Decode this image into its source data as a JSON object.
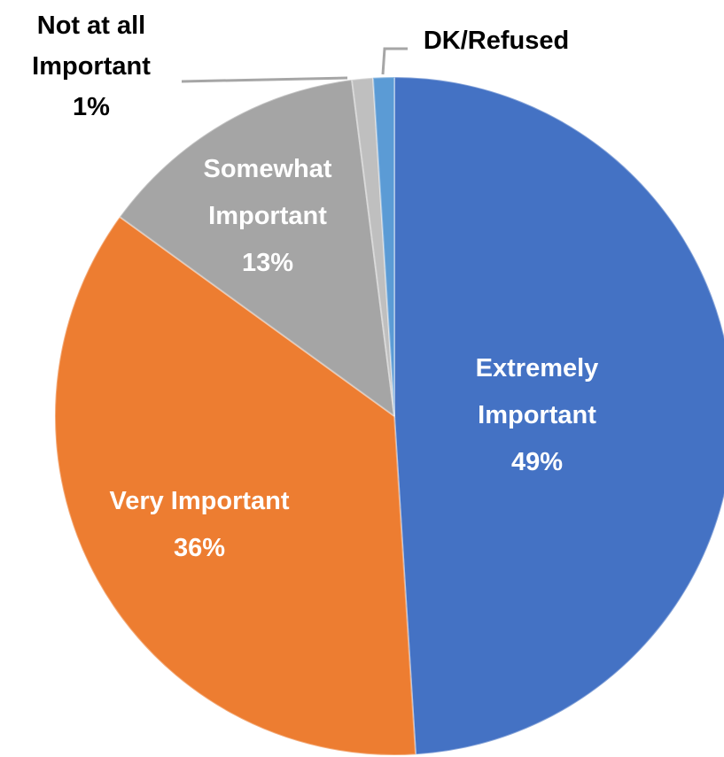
{
  "chart_data": {
    "type": "pie",
    "title": "",
    "slices": [
      {
        "label_lines": [
          "Extremely",
          "Important"
        ],
        "pct_label": "49%",
        "value": 49,
        "color": "#4472C4",
        "label_color": "#FFFFFF"
      },
      {
        "label_lines": [
          "Very Important"
        ],
        "pct_label": "36%",
        "value": 36,
        "color": "#ED7D31",
        "label_color": "#FFFFFF"
      },
      {
        "label_lines": [
          "Somewhat",
          "Important"
        ],
        "pct_label": "13%",
        "value": 13,
        "color": "#A5A5A5",
        "label_color": "#FFFFFF"
      },
      {
        "label_lines": [
          "Not at all",
          "Important"
        ],
        "pct_label": "1%",
        "value": 1,
        "color": "#BFBFBF",
        "label_color": "#000000"
      },
      {
        "label_lines": [
          "DK/Refused"
        ],
        "pct_label": "",
        "value": 1,
        "color": "#5B9BD5",
        "label_color": "#000000"
      }
    ],
    "legend": "none"
  }
}
